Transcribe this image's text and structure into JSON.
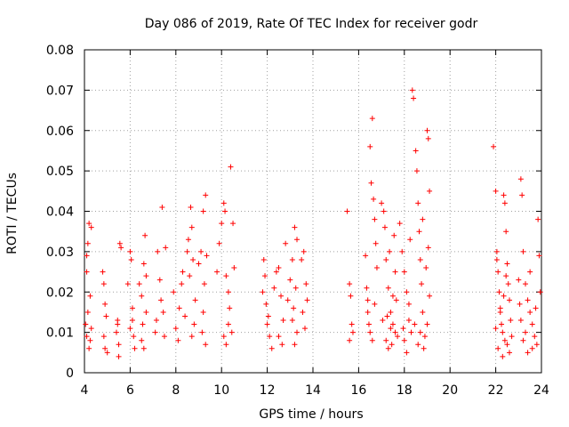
{
  "chart_data": {
    "type": "scatter",
    "title": "Day 086 of 2019, Rate Of TEC Index for receiver godr",
    "xlabel": "GPS time / hours",
    "ylabel": "ROTI / TECUs",
    "xlim": [
      4,
      24
    ],
    "ylim": [
      0,
      0.08
    ],
    "xticks": [
      4,
      6,
      8,
      10,
      12,
      14,
      16,
      18,
      20,
      22,
      24
    ],
    "yticks": [
      0,
      0.01,
      0.02,
      0.03,
      0.04,
      0.05,
      0.06,
      0.07,
      0.08
    ],
    "xtick_labels": [
      "4",
      "6",
      "8",
      "10",
      "12",
      "14",
      "16",
      "18",
      "20",
      "22",
      "24"
    ],
    "ytick_labels": [
      "0",
      "0.01",
      "0.02",
      "0.03",
      "0.04",
      "0.05",
      "0.06",
      "0.07",
      "0.08"
    ],
    "grid": true,
    "marker": "+",
    "color": "#ff0000",
    "series": [
      {
        "name": "ROTI",
        "points": [
          [
            4.1,
            0.029
          ],
          [
            4.15,
            0.032
          ],
          [
            4.2,
            0.037
          ],
          [
            4.25,
            0.019
          ],
          [
            4.05,
            0.012
          ],
          [
            4.1,
            0.009
          ],
          [
            4.2,
            0.006
          ],
          [
            4.3,
            0.011
          ],
          [
            4.15,
            0.015
          ],
          [
            4.25,
            0.008
          ],
          [
            4.3,
            0.036
          ],
          [
            4.1,
            0.025
          ],
          [
            4.8,
            0.025
          ],
          [
            4.85,
            0.022
          ],
          [
            4.9,
            0.017
          ],
          [
            4.95,
            0.014
          ],
          [
            4.85,
            0.009
          ],
          [
            4.9,
            0.006
          ],
          [
            5.0,
            0.005
          ],
          [
            5.4,
            0.01
          ],
          [
            5.45,
            0.012
          ],
          [
            5.5,
            0.007
          ],
          [
            5.55,
            0.032
          ],
          [
            5.6,
            0.031
          ],
          [
            5.5,
            0.004
          ],
          [
            5.45,
            0.013
          ],
          [
            5.9,
            0.022
          ],
          [
            6.0,
            0.03
          ],
          [
            6.05,
            0.028
          ],
          [
            6.1,
            0.016
          ],
          [
            6.15,
            0.009
          ],
          [
            6.2,
            0.006
          ],
          [
            6.0,
            0.011
          ],
          [
            6.1,
            0.013
          ],
          [
            6.4,
            0.022
          ],
          [
            6.5,
            0.019
          ],
          [
            6.6,
            0.027
          ],
          [
            6.65,
            0.034
          ],
          [
            6.7,
            0.024
          ],
          [
            6.5,
            0.008
          ],
          [
            6.55,
            0.012
          ],
          [
            6.6,
            0.006
          ],
          [
            6.7,
            0.015
          ],
          [
            7.1,
            0.01
          ],
          [
            7.15,
            0.013
          ],
          [
            7.2,
            0.03
          ],
          [
            7.3,
            0.023
          ],
          [
            7.4,
            0.041
          ],
          [
            7.45,
            0.015
          ],
          [
            7.5,
            0.009
          ],
          [
            7.55,
            0.031
          ],
          [
            7.35,
            0.018
          ],
          [
            7.9,
            0.02
          ],
          [
            8.0,
            0.011
          ],
          [
            8.1,
            0.008
          ],
          [
            8.25,
            0.022
          ],
          [
            8.3,
            0.025
          ],
          [
            8.4,
            0.014
          ],
          [
            8.15,
            0.016
          ],
          [
            8.5,
            0.03
          ],
          [
            8.55,
            0.033
          ],
          [
            8.6,
            0.024
          ],
          [
            8.65,
            0.041
          ],
          [
            8.7,
            0.036
          ],
          [
            8.75,
            0.028
          ],
          [
            8.8,
            0.012
          ],
          [
            8.7,
            0.009
          ],
          [
            8.85,
            0.018
          ],
          [
            9.0,
            0.027
          ],
          [
            9.1,
            0.03
          ],
          [
            9.2,
            0.04
          ],
          [
            9.3,
            0.044
          ],
          [
            9.35,
            0.029
          ],
          [
            9.25,
            0.022
          ],
          [
            9.15,
            0.01
          ],
          [
            9.3,
            0.007
          ],
          [
            9.2,
            0.015
          ],
          [
            9.8,
            0.025
          ],
          [
            9.9,
            0.032
          ],
          [
            10.0,
            0.037
          ],
          [
            10.1,
            0.042
          ],
          [
            10.15,
            0.04
          ],
          [
            10.2,
            0.024
          ],
          [
            10.3,
            0.02
          ],
          [
            10.35,
            0.016
          ],
          [
            10.4,
            0.051
          ],
          [
            10.5,
            0.037
          ],
          [
            10.55,
            0.026
          ],
          [
            10.45,
            0.01
          ],
          [
            10.2,
            0.007
          ],
          [
            10.3,
            0.012
          ],
          [
            10.1,
            0.009
          ],
          [
            11.8,
            0.02
          ],
          [
            11.85,
            0.028
          ],
          [
            11.9,
            0.024
          ],
          [
            11.95,
            0.017
          ],
          [
            12.0,
            0.012
          ],
          [
            12.1,
            0.009
          ],
          [
            12.2,
            0.006
          ],
          [
            12.05,
            0.014
          ],
          [
            12.3,
            0.021
          ],
          [
            12.4,
            0.025
          ],
          [
            12.5,
            0.026
          ],
          [
            12.6,
            0.019
          ],
          [
            12.7,
            0.013
          ],
          [
            12.8,
            0.032
          ],
          [
            12.9,
            0.018
          ],
          [
            12.5,
            0.009
          ],
          [
            12.65,
            0.007
          ],
          [
            13.1,
            0.028
          ],
          [
            13.2,
            0.036
          ],
          [
            13.3,
            0.033
          ],
          [
            13.25,
            0.021
          ],
          [
            13.15,
            0.016
          ],
          [
            13.3,
            0.01
          ],
          [
            13.2,
            0.007
          ],
          [
            13.0,
            0.023
          ],
          [
            13.1,
            0.013
          ],
          [
            13.5,
            0.028
          ],
          [
            13.6,
            0.03
          ],
          [
            13.7,
            0.022
          ],
          [
            13.75,
            0.018
          ],
          [
            13.65,
            0.011
          ],
          [
            13.55,
            0.015
          ],
          [
            15.5,
            0.04
          ],
          [
            15.6,
            0.022
          ],
          [
            15.65,
            0.019
          ],
          [
            15.7,
            0.012
          ],
          [
            15.75,
            0.01
          ],
          [
            15.6,
            0.008
          ],
          [
            16.3,
            0.029
          ],
          [
            16.35,
            0.021
          ],
          [
            16.4,
            0.015
          ],
          [
            16.45,
            0.012
          ],
          [
            16.5,
            0.056
          ],
          [
            16.55,
            0.047
          ],
          [
            16.6,
            0.063
          ],
          [
            16.65,
            0.043
          ],
          [
            16.7,
            0.038
          ],
          [
            16.75,
            0.032
          ],
          [
            16.8,
            0.026
          ],
          [
            16.5,
            0.01
          ],
          [
            16.6,
            0.008
          ],
          [
            16.4,
            0.018
          ],
          [
            16.7,
            0.017
          ],
          [
            17.0,
            0.042
          ],
          [
            17.1,
            0.04
          ],
          [
            17.15,
            0.036
          ],
          [
            17.2,
            0.028
          ],
          [
            17.3,
            0.021
          ],
          [
            17.4,
            0.015
          ],
          [
            17.5,
            0.012
          ],
          [
            17.6,
            0.01
          ],
          [
            17.7,
            0.009
          ],
          [
            17.2,
            0.008
          ],
          [
            17.3,
            0.006
          ],
          [
            17.4,
            0.011
          ],
          [
            17.5,
            0.019
          ],
          [
            17.6,
            0.025
          ],
          [
            17.05,
            0.013
          ],
          [
            17.25,
            0.014
          ],
          [
            17.45,
            0.007
          ],
          [
            17.65,
            0.018
          ],
          [
            17.35,
            0.03
          ],
          [
            17.55,
            0.034
          ],
          [
            17.8,
            0.037
          ],
          [
            17.9,
            0.03
          ],
          [
            18.0,
            0.025
          ],
          [
            18.1,
            0.02
          ],
          [
            18.2,
            0.013
          ],
          [
            18.3,
            0.01
          ],
          [
            18.35,
            0.07
          ],
          [
            18.4,
            0.068
          ],
          [
            18.5,
            0.055
          ],
          [
            18.55,
            0.05
          ],
          [
            18.6,
            0.042
          ],
          [
            18.65,
            0.035
          ],
          [
            18.7,
            0.028
          ],
          [
            18.75,
            0.022
          ],
          [
            18.8,
            0.015
          ],
          [
            18.9,
            0.009
          ],
          [
            19.0,
            0.06
          ],
          [
            19.05,
            0.058
          ],
          [
            19.1,
            0.045
          ],
          [
            19.0,
            0.012
          ],
          [
            18.85,
            0.006
          ],
          [
            18.6,
            0.007
          ],
          [
            18.0,
            0.008
          ],
          [
            18.1,
            0.005
          ],
          [
            18.2,
            0.017
          ],
          [
            17.95,
            0.011
          ],
          [
            18.45,
            0.012
          ],
          [
            18.7,
            0.01
          ],
          [
            19.1,
            0.019
          ],
          [
            18.95,
            0.026
          ],
          [
            18.25,
            0.033
          ],
          [
            18.8,
            0.038
          ],
          [
            19.05,
            0.031
          ],
          [
            21.9,
            0.056
          ],
          [
            22.0,
            0.045
          ],
          [
            22.05,
            0.03
          ],
          [
            22.1,
            0.025
          ],
          [
            22.15,
            0.02
          ],
          [
            22.2,
            0.015
          ],
          [
            22.25,
            0.012
          ],
          [
            22.3,
            0.01
          ],
          [
            22.35,
            0.044
          ],
          [
            22.4,
            0.042
          ],
          [
            22.45,
            0.035
          ],
          [
            22.5,
            0.027
          ],
          [
            22.55,
            0.022
          ],
          [
            22.6,
            0.018
          ],
          [
            22.65,
            0.013
          ],
          [
            22.7,
            0.009
          ],
          [
            22.1,
            0.006
          ],
          [
            22.3,
            0.004
          ],
          [
            22.5,
            0.007
          ],
          [
            22.0,
            0.011
          ],
          [
            22.2,
            0.016
          ],
          [
            22.4,
            0.008
          ],
          [
            22.6,
            0.005
          ],
          [
            22.45,
            0.024
          ],
          [
            22.05,
            0.028
          ],
          [
            22.35,
            0.019
          ],
          [
            23.0,
            0.023
          ],
          [
            23.1,
            0.048
          ],
          [
            23.15,
            0.044
          ],
          [
            23.2,
            0.03
          ],
          [
            23.3,
            0.022
          ],
          [
            23.4,
            0.018
          ],
          [
            23.5,
            0.015
          ],
          [
            23.6,
            0.012
          ],
          [
            23.7,
            0.009
          ],
          [
            23.8,
            0.007
          ],
          [
            23.85,
            0.038
          ],
          [
            23.9,
            0.029
          ],
          [
            23.95,
            0.02
          ],
          [
            23.2,
            0.008
          ],
          [
            23.4,
            0.005
          ],
          [
            23.6,
            0.006
          ],
          [
            23.1,
            0.013
          ],
          [
            23.3,
            0.01
          ],
          [
            23.5,
            0.025
          ],
          [
            23.75,
            0.016
          ],
          [
            23.05,
            0.017
          ]
        ]
      }
    ]
  }
}
